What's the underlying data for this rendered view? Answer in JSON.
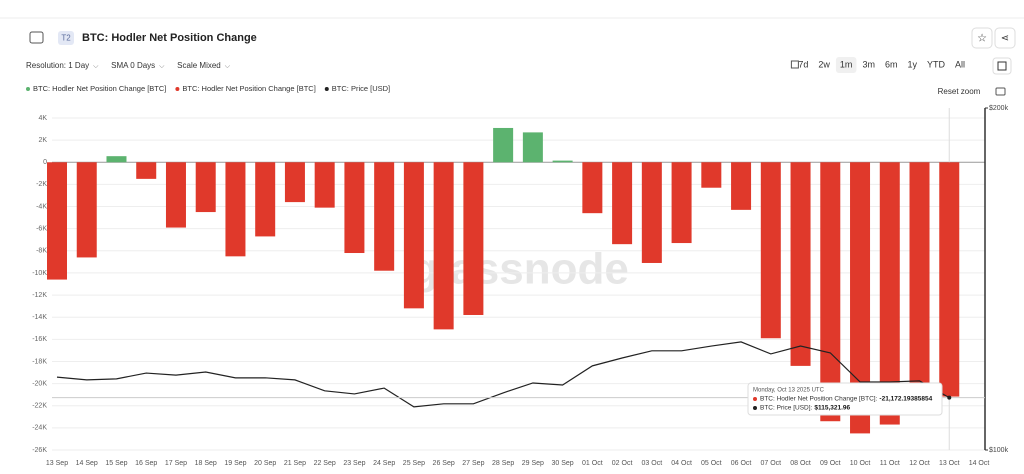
{
  "header": {
    "badge": "T2",
    "title": "BTC: Hodler Net Position Change"
  },
  "toolbar": {
    "controls": [
      "Resolution: 1 Day",
      "SMA 0 Days",
      "Scale Mixed"
    ],
    "ranges": [
      "7d",
      "2w",
      "1m",
      "3m",
      "6m",
      "1y",
      "YTD",
      "All"
    ],
    "reset": "Reset zoom"
  },
  "watermark": "glassnode",
  "chart_data": {
    "type": "bar",
    "legend": [
      {
        "name": "BTC: Hodler Net Position Change [BTC]",
        "color": "#5cb36f"
      },
      {
        "name": "BTC: Hodler Net Position Change [BTC]",
        "color": "#e0392b"
      },
      {
        "name": "BTC: Price [USD]",
        "color": "#222222"
      }
    ],
    "categories": [
      "13 Sep",
      "14 Sep",
      "15 Sep",
      "16 Sep",
      "17 Sep",
      "18 Sep",
      "19 Sep",
      "20 Sep",
      "21 Sep",
      "22 Sep",
      "23 Sep",
      "24 Sep",
      "25 Sep",
      "26 Sep",
      "27 Sep",
      "28 Sep",
      "29 Sep",
      "30 Sep",
      "01 Oct",
      "02 Oct",
      "03 Oct",
      "04 Oct",
      "05 Oct",
      "06 Oct",
      "07 Oct",
      "08 Oct",
      "09 Oct",
      "10 Oct",
      "11 Oct",
      "12 Oct",
      "13 Oct",
      "14 Oct"
    ],
    "series": [
      {
        "values": [
          -10600,
          -8600,
          550,
          -1500,
          -5900,
          -4500,
          -8500,
          -6700,
          -3600,
          -4100,
          -8200,
          -9800,
          -13200,
          -15100,
          -13800,
          3100,
          2700,
          150,
          -4600,
          -7400,
          -9100,
          -7300,
          -2300,
          -4300,
          -15900,
          -18400,
          -23400,
          -24500,
          -23700,
          -19900,
          -21172.19385854,
          null
        ]
      },
      {
        "axis": "y2",
        "values": [
          121300,
          120500,
          120800,
          122500,
          121900,
          122800,
          121100,
          121100,
          120500,
          117300,
          116400,
          118100,
          112600,
          113500,
          113500,
          116700,
          119600,
          119000,
          124600,
          126900,
          129000,
          129000,
          130400,
          131600,
          128100,
          130400,
          128400,
          119900,
          119900,
          120200,
          115321.96,
          null
        ]
      }
    ],
    "ylim": [
      -26000,
      4000
    ],
    "yticks": [
      {
        "value": 4000,
        "label": "4K"
      },
      {
        "value": 2000,
        "label": "2K"
      },
      0,
      {
        "value": -2000,
        "label": "-2K"
      },
      {
        "value": -4000,
        "label": "-4K"
      },
      {
        "value": -6000,
        "label": "-6K"
      },
      {
        "value": -8000,
        "label": "-8K"
      },
      {
        "value": -10000,
        "label": "-10K"
      },
      {
        "value": -12000,
        "label": "-12K"
      },
      {
        "value": -14000,
        "label": "-14K"
      },
      {
        "value": -16000,
        "label": "-16K"
      },
      {
        "value": -18000,
        "label": "-18K"
      },
      {
        "value": -20000,
        "label": "-20K"
      },
      {
        "value": -22000,
        "label": "-22K"
      },
      {
        "value": -24000,
        "label": "-24K"
      },
      {
        "value": -26000,
        "label": "-26K"
      }
    ],
    "y2lim": [
      100000,
      200000
    ],
    "y2ticks": [
      {
        "value": 200000,
        "label": "$200k"
      },
      {
        "value": 100000,
        "label": "$100k"
      }
    ],
    "grid": true,
    "tooltip": {
      "date": "Monday, Oct 13 2025 UTC",
      "index": 30,
      "net_name": "BTC: Hodler Net Position Change [BTC]:",
      "net_label": "-21,172.19385854",
      "price_name": "BTC: Price [USD]:",
      "price_label": "$115,321.96"
    }
  }
}
